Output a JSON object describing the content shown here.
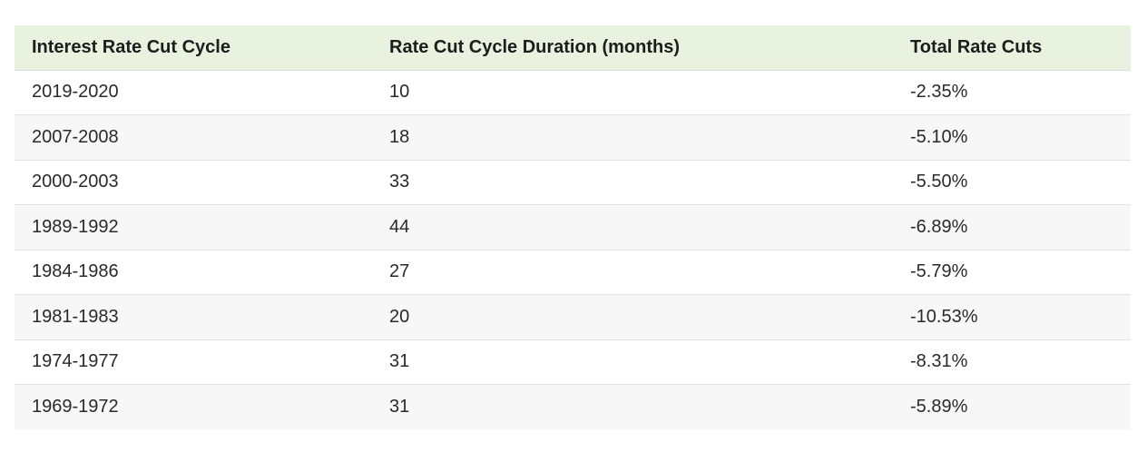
{
  "table": {
    "headers": [
      "Interest Rate Cut Cycle",
      "Rate Cut Cycle Duration (months)",
      "Total Rate Cuts"
    ],
    "rows": [
      [
        "2019-2020",
        "10",
        "-2.35%"
      ],
      [
        "2007-2008",
        "18",
        "-5.10%"
      ],
      [
        "2000-2003",
        "33",
        "-5.50%"
      ],
      [
        "1989-1992",
        "44",
        "-6.89%"
      ],
      [
        "1984-1986",
        "27",
        "-5.79%"
      ],
      [
        "1981-1983",
        "20",
        "-10.53%"
      ],
      [
        "1974-1977",
        "31",
        "-8.31%"
      ],
      [
        "1969-1972",
        "31",
        "-5.89%"
      ]
    ]
  },
  "colors": {
    "header_background": "#e9f1df",
    "stripe_background": "#f7f7f7"
  }
}
